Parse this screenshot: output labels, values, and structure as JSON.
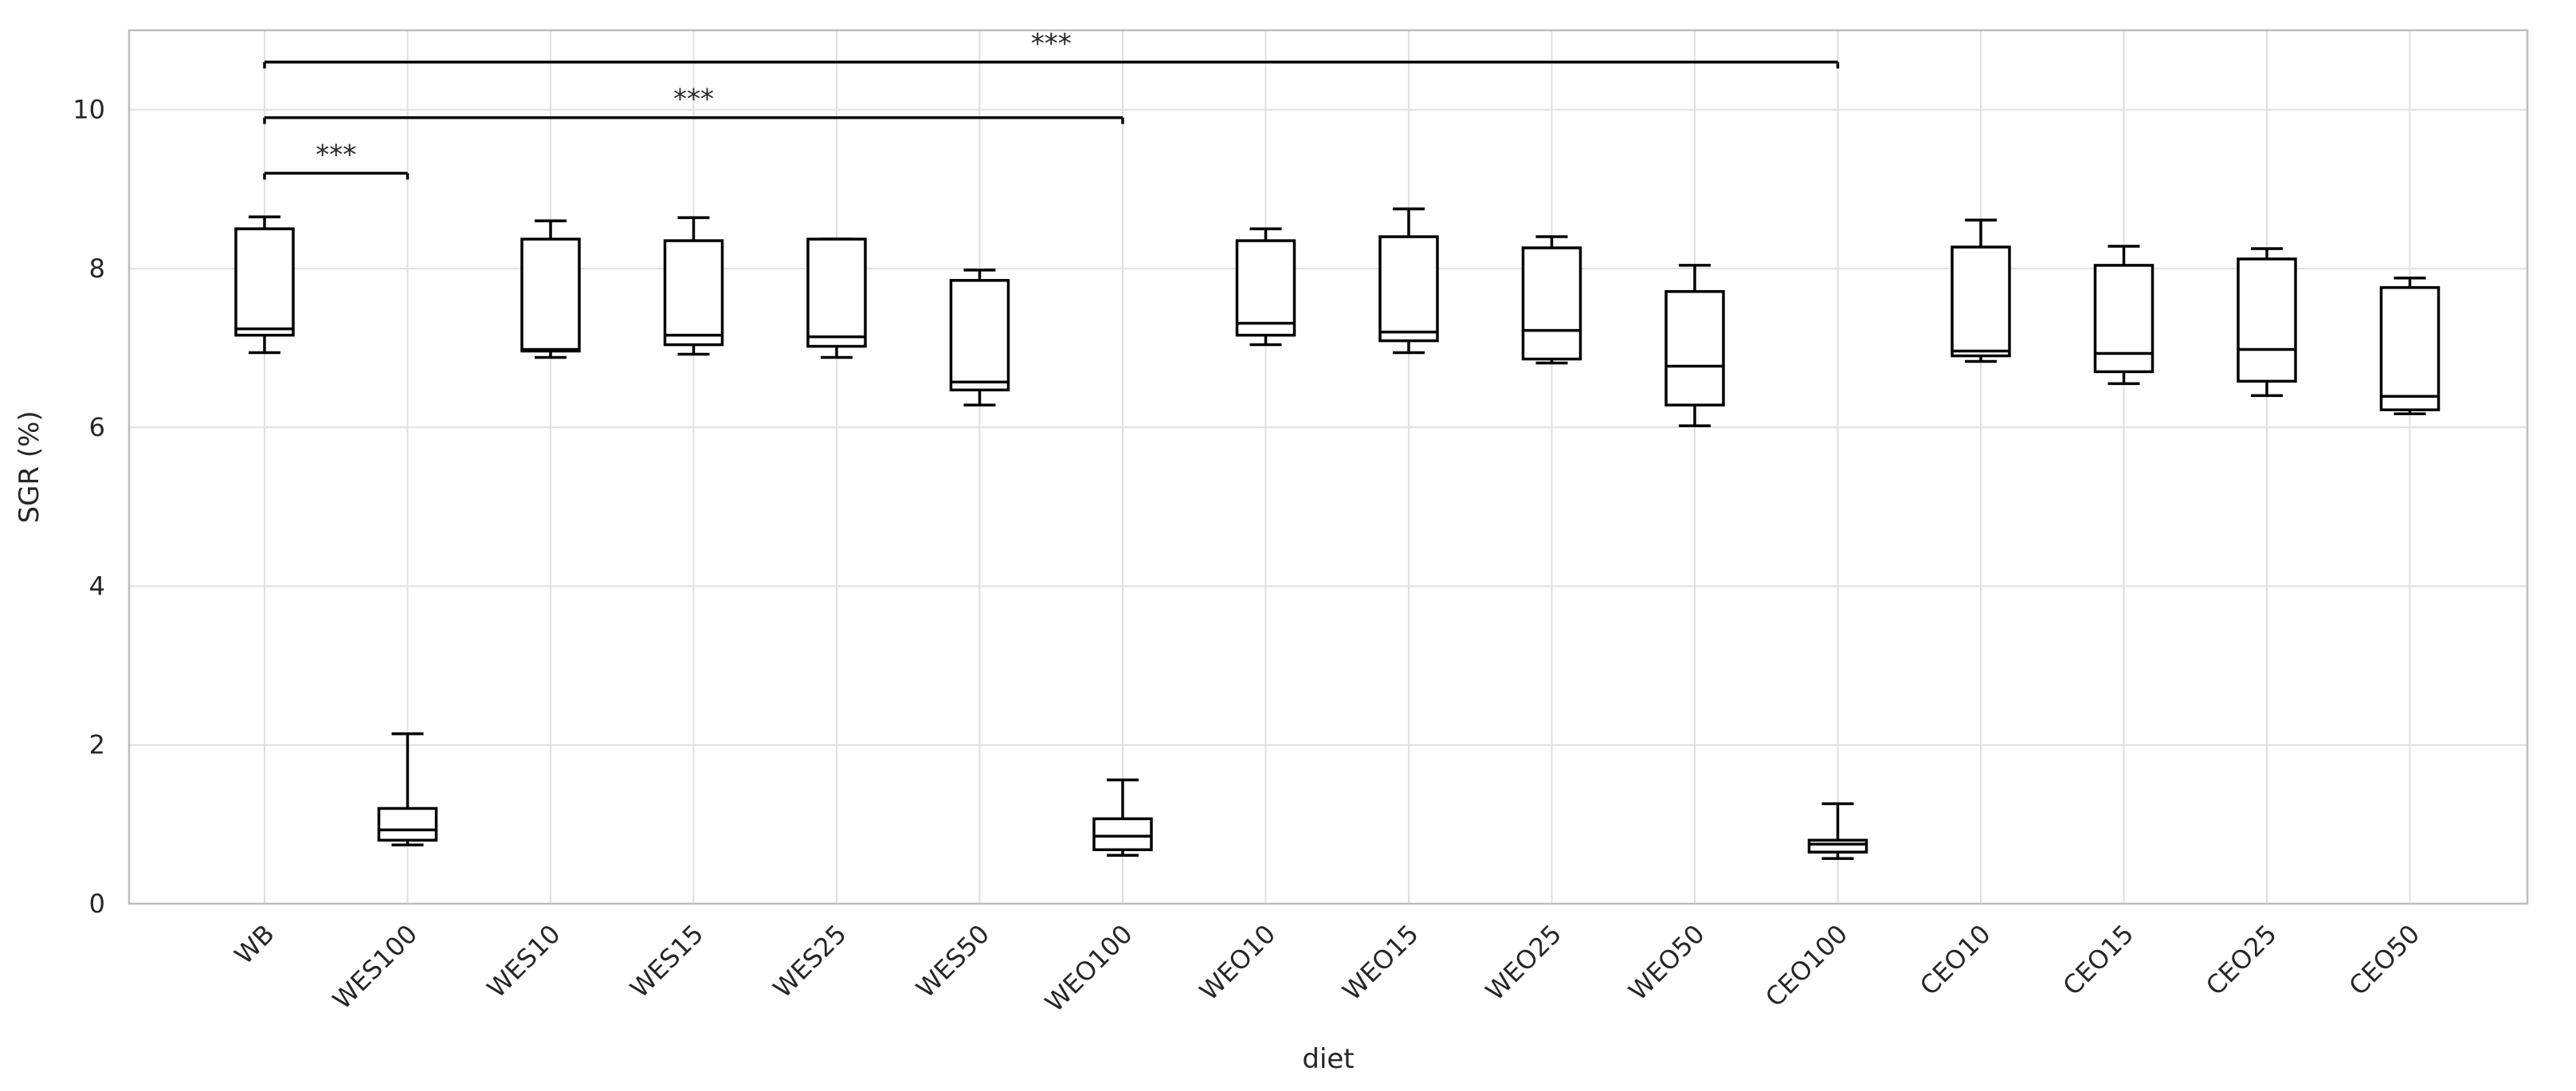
{
  "chart_data": {
    "type": "box",
    "xlabel": "diet",
    "ylabel": "SGR (%)",
    "ylim": [
      0,
      11
    ],
    "yticks": [
      0,
      2,
      4,
      6,
      8,
      10
    ],
    "grid": true,
    "categories": [
      "WB",
      "WES100",
      "WES10",
      "WES15",
      "WES25",
      "WES50",
      "WEO100",
      "WEO10",
      "WEO15",
      "WEO25",
      "WEO50",
      "CEO100",
      "CEO10",
      "CEO15",
      "CEO25",
      "CEO50"
    ],
    "boxes": [
      {
        "category": "WB",
        "min": 6.94,
        "q1": 7.16,
        "median": 7.24,
        "q3": 8.5,
        "max": 8.65
      },
      {
        "category": "WES100",
        "min": 0.74,
        "q1": 0.8,
        "median": 0.93,
        "q3": 1.2,
        "max": 2.14
      },
      {
        "category": "WES10",
        "min": 6.88,
        "q1": 6.96,
        "median": 6.98,
        "q3": 8.37,
        "max": 8.6
      },
      {
        "category": "WES15",
        "min": 6.92,
        "q1": 7.04,
        "median": 7.16,
        "q3": 8.35,
        "max": 8.64
      },
      {
        "category": "WES25",
        "min": 6.88,
        "q1": 7.02,
        "median": 7.14,
        "q3": 8.37,
        "max": 8.37
      },
      {
        "category": "WES50",
        "min": 6.28,
        "q1": 6.47,
        "median": 6.57,
        "q3": 7.85,
        "max": 7.98
      },
      {
        "category": "WEO100",
        "min": 0.61,
        "q1": 0.68,
        "median": 0.85,
        "q3": 1.07,
        "max": 1.56
      },
      {
        "category": "WEO10",
        "min": 7.04,
        "q1": 7.16,
        "median": 7.31,
        "q3": 8.35,
        "max": 8.5
      },
      {
        "category": "WEO15",
        "min": 6.94,
        "q1": 7.09,
        "median": 7.2,
        "q3": 8.4,
        "max": 8.75
      },
      {
        "category": "WEO25",
        "min": 6.81,
        "q1": 6.86,
        "median": 7.22,
        "q3": 8.26,
        "max": 8.4
      },
      {
        "category": "WEO50",
        "min": 6.02,
        "q1": 6.28,
        "median": 6.77,
        "q3": 7.71,
        "max": 8.04
      },
      {
        "category": "CEO100",
        "min": 0.57,
        "q1": 0.65,
        "median": 0.75,
        "q3": 0.8,
        "max": 1.26
      },
      {
        "category": "CEO10",
        "min": 6.83,
        "q1": 6.9,
        "median": 6.96,
        "q3": 8.27,
        "max": 8.61
      },
      {
        "category": "CEO15",
        "min": 6.55,
        "q1": 6.7,
        "median": 6.93,
        "q3": 8.04,
        "max": 8.28
      },
      {
        "category": "CEO25",
        "min": 6.4,
        "q1": 6.58,
        "median": 6.98,
        "q3": 8.12,
        "max": 8.25
      },
      {
        "category": "CEO50",
        "min": 6.17,
        "q1": 6.22,
        "median": 6.39,
        "q3": 7.76,
        "max": 7.88
      }
    ],
    "annotations": [
      {
        "from": "WB",
        "to": "WES100",
        "y": 9.2,
        "label": "***"
      },
      {
        "from": "WB",
        "to": "WEO100",
        "y": 9.9,
        "label": "***"
      },
      {
        "from": "WB",
        "to": "CEO100",
        "y": 10.6,
        "label": "***"
      }
    ],
    "colors": {
      "box_edge": "#000000",
      "box_fill": "#ffffff",
      "grid": "#e0e0e0",
      "frame": "#bdbdbd"
    }
  }
}
